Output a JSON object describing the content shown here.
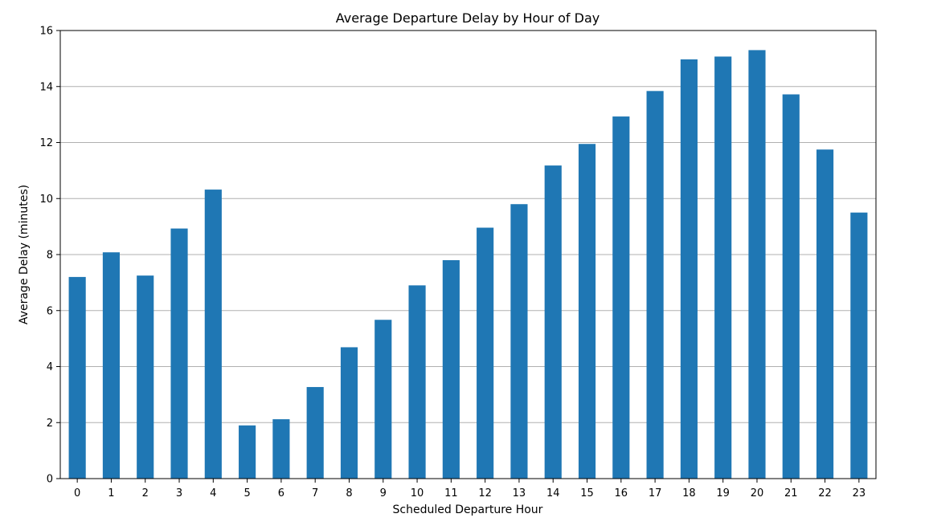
{
  "chart_data": {
    "type": "bar",
    "title": "Average Departure Delay by Hour of Day",
    "xlabel": "Scheduled Departure Hour",
    "ylabel": "Average Delay (minutes)",
    "categories": [
      "0",
      "1",
      "2",
      "3",
      "4",
      "5",
      "6",
      "7",
      "8",
      "9",
      "10",
      "11",
      "12",
      "13",
      "14",
      "15",
      "16",
      "17",
      "18",
      "19",
      "20",
      "21",
      "22",
      "23"
    ],
    "values": [
      7.2,
      8.08,
      7.25,
      8.93,
      10.32,
      1.9,
      2.12,
      3.27,
      4.69,
      5.67,
      6.9,
      7.8,
      8.96,
      9.8,
      11.18,
      11.95,
      12.93,
      13.84,
      14.97,
      15.07,
      15.3,
      13.72,
      11.75,
      9.5
    ],
    "ylim": [
      0,
      16
    ],
    "yticks": [
      0,
      2,
      4,
      6,
      8,
      10,
      12,
      14,
      16
    ],
    "grid": "y",
    "bar_color": "#1f77b4"
  }
}
